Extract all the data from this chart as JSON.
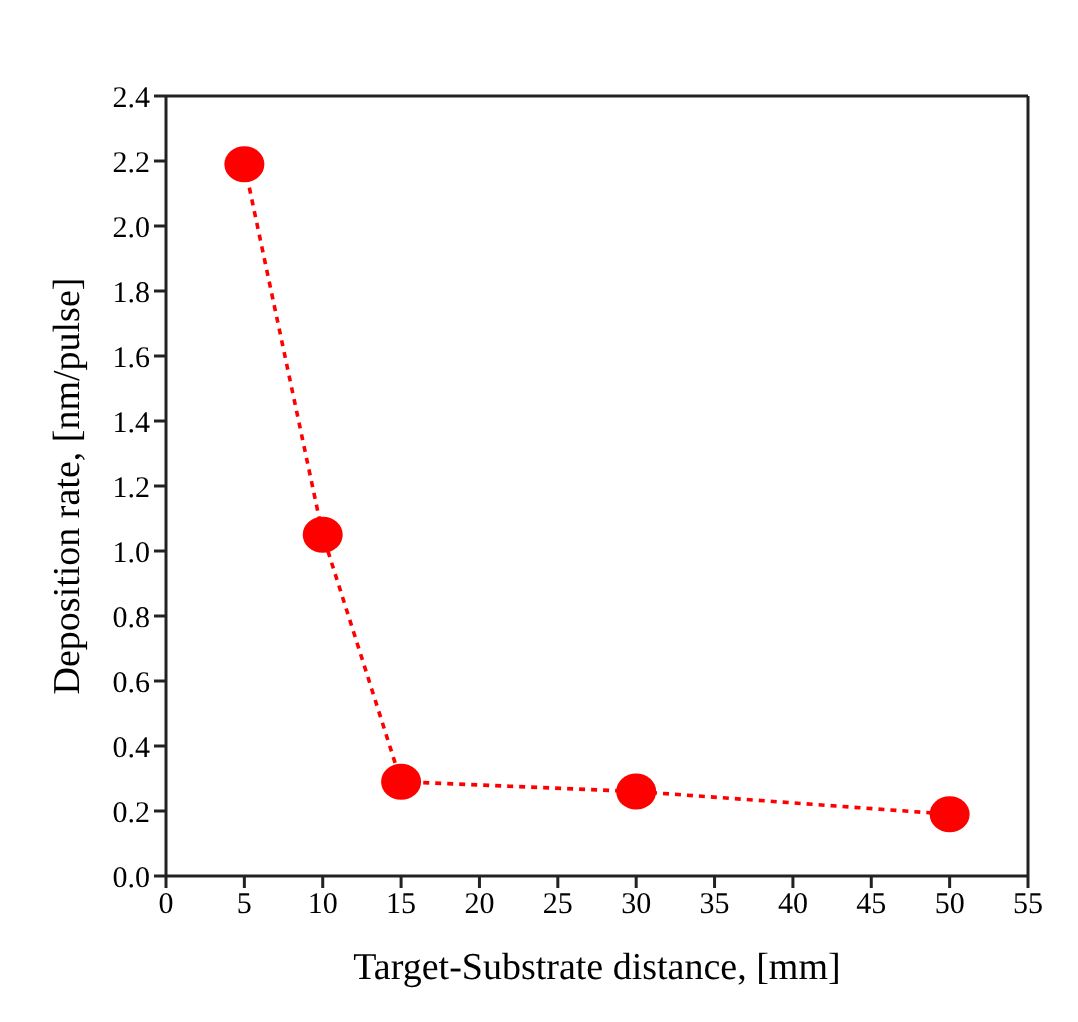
{
  "chart_data": {
    "type": "line",
    "xlabel": "Target-Substrate distance, [mm]",
    "ylabel": "Deposition rate, [nm/pulse]",
    "x": [
      5,
      10,
      15,
      30,
      50
    ],
    "series": [
      {
        "color": "#ff0000",
        "values": [
          2.19,
          1.05,
          0.29,
          0.26,
          0.19
        ]
      }
    ],
    "xlim": [
      0,
      55
    ],
    "xticks": [
      0,
      5,
      10,
      15,
      20,
      25,
      30,
      35,
      40,
      45,
      50,
      55
    ],
    "ylim": [
      0,
      2.4
    ],
    "yticks": [
      {
        "value": 0,
        "label": "0.0"
      },
      0.2,
      0.4,
      0.6,
      0.8,
      {
        "value": 1,
        "label": "1.0"
      },
      1.2,
      1.4,
      1.6,
      1.8,
      {
        "value": 2,
        "label": "2.0"
      },
      2.2,
      2.4
    ],
    "marker": "circle",
    "line_style": "dotted",
    "grid": false,
    "legend": false
  }
}
